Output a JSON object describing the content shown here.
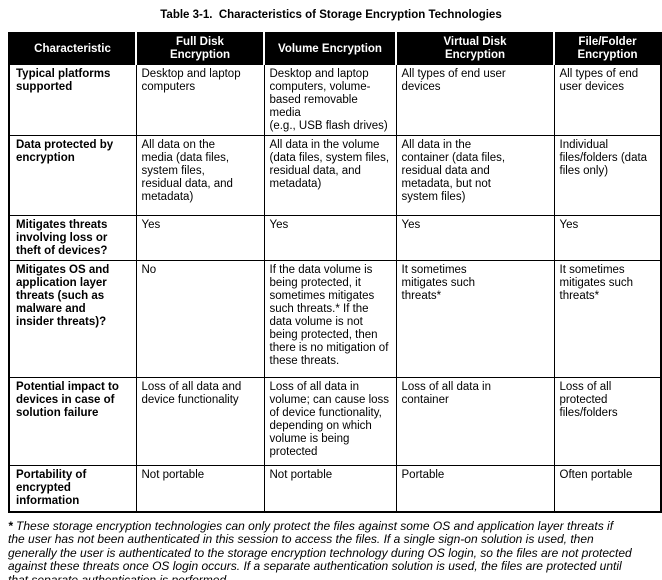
{
  "caption": "Table 3-1.  Characteristics of Storage Encryption Technologies",
  "table": {
    "columns": [
      "Characteristic",
      "Full Disk\nEncryption",
      "Volume Encryption",
      "Virtual Disk\nEncryption",
      "File/Folder\nEncryption"
    ],
    "rows": [
      {
        "label": "Typical platforms\nsupported",
        "cells": [
          "Desktop and laptop\ncomputers",
          "Desktop and laptop\ncomputers, volume-\nbased removable media\n(e.g., USB flash drives)",
          "All types of end user\ndevices",
          "All types of end\nuser devices"
        ]
      },
      {
        "label": "Data protected by\nencryption",
        "cells": [
          "All data on the\nmedia (data files,\nsystem files,\nresidual data, and\nmetadata)",
          "All data in the volume\n(data files, system files,\nresidual data, and\nmetadata)",
          "All data in the\ncontainer (data files,\nresidual data and\nmetadata, but not\nsystem files)",
          "Individual\nfiles/folders (data\nfiles only)"
        ]
      },
      {
        "label": "Mitigates threats\ninvolving loss or\ntheft of devices?",
        "cells": [
          "Yes",
          "Yes",
          "Yes",
          "Yes"
        ]
      },
      {
        "label": "Mitigates OS and\napplication layer\nthreats (such as\nmalware and\ninsider threats)?",
        "cells": [
          "No",
          "If the data volume is\nbeing protected, it\nsometimes mitigates\nsuch threats.* If the\ndata volume is not\nbeing protected, then\nthere is no mitigation of\nthese threats.",
          "It sometimes\nmitigates such\nthreats*",
          "It sometimes\nmitigates such\nthreats*"
        ]
      },
      {
        "label": "Potential impact to\ndevices in case of\nsolution failure",
        "cells": [
          "Loss of all data and\ndevice functionality",
          "Loss of all data in\nvolume; can cause loss\nof device functionality,\ndepending on which\nvolume is being\nprotected",
          "Loss of all data in\ncontainer",
          "Loss of all\nprotected\nfiles/folders"
        ]
      },
      {
        "label": "Portability of\nencrypted\ninformation",
        "cells": [
          "Not portable",
          "Not portable",
          "Portable",
          "Often portable"
        ]
      }
    ]
  },
  "footnote": {
    "marker": "*",
    "text": "These storage encryption technologies can only protect the files against some OS and application layer threats if\nthe user has not been authenticated in this session to access the files.  If a single sign-on solution is used, then\ngenerally the user is authenticated to the storage encryption technology during OS login, so the files are not protected\nagainst these threats once OS login occurs.  If a separate authentication solution is used, the files are protected until\nthat separate authentication is performed."
  },
  "colors": {
    "header_background": "#000000",
    "header_text": "#ffffff",
    "body_text": "#000000",
    "grid_border": "#000000",
    "page_background": "#ffffff"
  }
}
